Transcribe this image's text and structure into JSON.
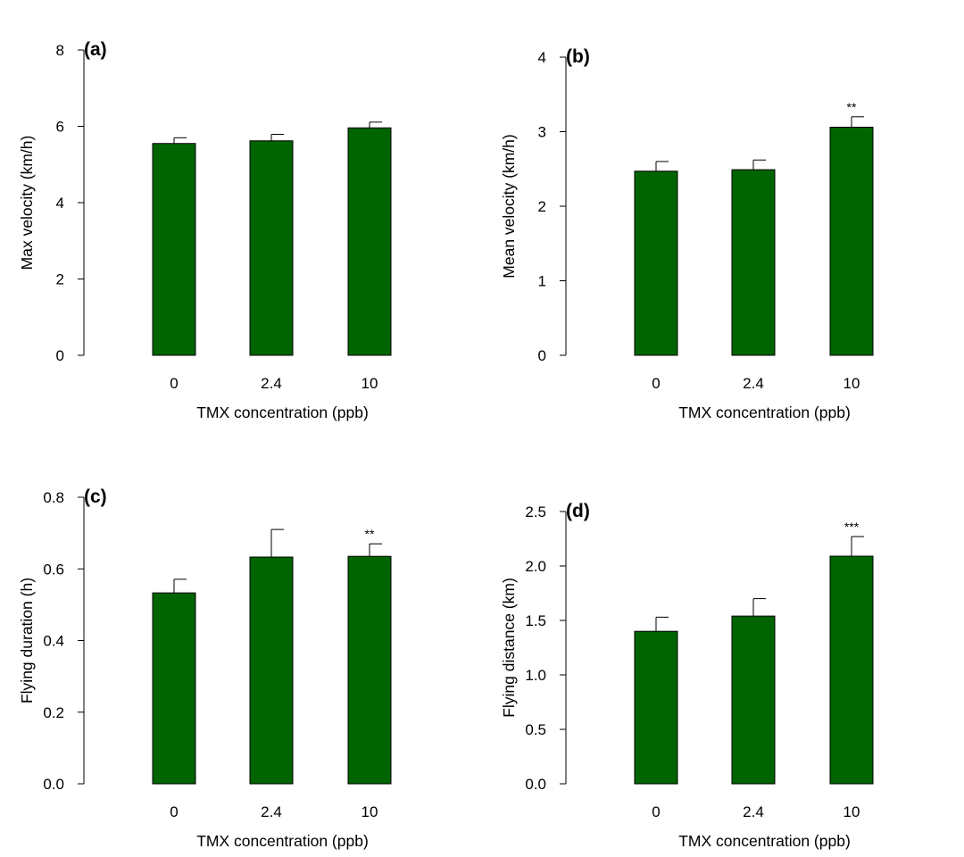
{
  "figure": {
    "bar_color": "#006400",
    "axis_color": "#000000"
  },
  "chart_data": [
    {
      "type": "bar",
      "panel_label": "(a)",
      "categories": [
        "0",
        "2.4",
        "10"
      ],
      "values": [
        5.55,
        5.62,
        5.96
      ],
      "errors": [
        0.15,
        0.17,
        0.15
      ],
      "significance": [
        "",
        "",
        ""
      ],
      "xlabel": "TMX concentration (ppb)",
      "ylabel": "Max velocity (km/h)",
      "ylim": [
        0,
        8
      ],
      "yticks": [
        "0",
        "2",
        "4",
        "6",
        "8"
      ],
      "grid": false
    },
    {
      "type": "bar",
      "panel_label": "(b)",
      "categories": [
        "0",
        "2.4",
        "10"
      ],
      "values": [
        2.47,
        2.49,
        3.06
      ],
      "errors": [
        0.13,
        0.13,
        0.14
      ],
      "significance": [
        "",
        "",
        "**"
      ],
      "xlabel": "TMX concentration (ppb)",
      "ylabel": "Mean velocity (km/h)",
      "ylim": [
        0,
        4
      ],
      "yticks": [
        "0",
        "1",
        "2",
        "3",
        "4"
      ],
      "grid": false
    },
    {
      "type": "bar",
      "panel_label": "(c)",
      "categories": [
        "0",
        "2.4",
        "10"
      ],
      "values": [
        0.533,
        0.633,
        0.635
      ],
      "errors": [
        0.038,
        0.077,
        0.035
      ],
      "significance": [
        "",
        "",
        "**"
      ],
      "xlabel": "TMX concentration (ppb)",
      "ylabel": "Flying duration (h)",
      "ylim": [
        0,
        0.8
      ],
      "yticks": [
        "0.0",
        "0.2",
        "0.4",
        "0.6",
        "0.8"
      ],
      "grid": false
    },
    {
      "type": "bar",
      "panel_label": "(d)",
      "categories": [
        "0",
        "2.4",
        "10"
      ],
      "values": [
        1.4,
        1.54,
        2.09
      ],
      "errors": [
        0.13,
        0.16,
        0.18
      ],
      "significance": [
        "",
        "",
        "***"
      ],
      "xlabel": "TMX concentration (ppb)",
      "ylabel": "Flying distance (km)",
      "ylim": [
        0,
        2.5
      ],
      "yticks": [
        "0.0",
        "0.5",
        "1.0",
        "1.5",
        "2.0",
        "2.5"
      ],
      "grid": false
    }
  ]
}
